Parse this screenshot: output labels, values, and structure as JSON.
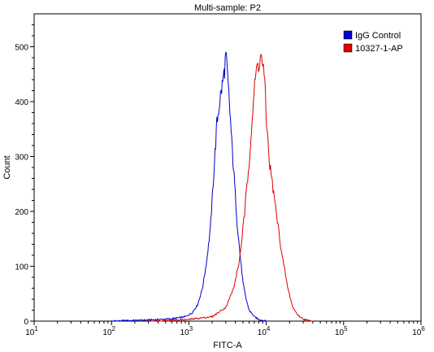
{
  "chart_data": {
    "type": "line",
    "title": "Multi-sample: P2",
    "xlabel": "FITC-A",
    "ylabel": "Count",
    "x_scale": "log",
    "xlim": [
      10,
      1000000
    ],
    "ylim": [
      0,
      560
    ],
    "x_ticks": [
      {
        "value": 10,
        "base": "10",
        "exp": "1"
      },
      {
        "value": 100,
        "base": "10",
        "exp": "2"
      },
      {
        "value": 1000,
        "base": "10",
        "exp": "3"
      },
      {
        "value": 10000,
        "base": "10",
        "exp": "4"
      },
      {
        "value": 100000,
        "base": "10",
        "exp": "5"
      },
      {
        "value": 1000000,
        "base": "10",
        "exp": "6"
      }
    ],
    "y_ticks": [
      0,
      100,
      200,
      300,
      400,
      500
    ],
    "legend_position": "top-right",
    "series": [
      {
        "name": "IgG Control",
        "color": "#0000cc",
        "x": [
          100,
          300,
          600,
          900,
          1100,
          1300,
          1500,
          1700,
          1900,
          2100,
          2300,
          2500,
          2700,
          2900,
          3000,
          3100,
          3250,
          3400,
          3600,
          3900,
          4200,
          4600,
          5000,
          5500,
          6000,
          7000,
          8000,
          10000
        ],
        "y": [
          0,
          2,
          4,
          8,
          15,
          30,
          60,
          110,
          170,
          270,
          360,
          400,
          430,
          460,
          485,
          460,
          420,
          380,
          320,
          250,
          180,
          120,
          70,
          40,
          20,
          8,
          3,
          0
        ]
      },
      {
        "name": "10327-1-AP",
        "color": "#dd0000",
        "x": [
          300,
          1000,
          2000,
          3000,
          3800,
          4500,
          5200,
          6000,
          6500,
          7000,
          7500,
          8000,
          8500,
          9000,
          9500,
          10000,
          11000,
          12000,
          14000,
          16000,
          19000,
          22000,
          26000,
          30000,
          35000,
          40000
        ],
        "y": [
          0,
          3,
          8,
          25,
          60,
          110,
          190,
          290,
          360,
          420,
          460,
          470,
          480,
          470,
          440,
          370,
          290,
          250,
          180,
          120,
          60,
          25,
          10,
          4,
          1,
          0
        ]
      }
    ]
  }
}
